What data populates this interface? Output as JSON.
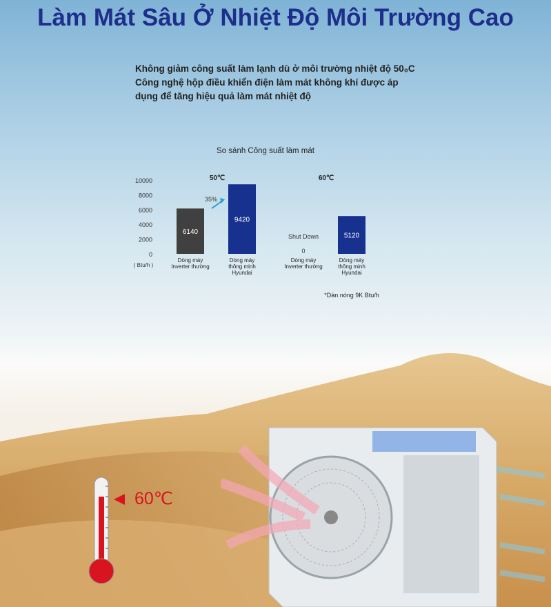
{
  "title": "Làm Mát Sâu Ở Nhiệt Độ Môi Trường Cao",
  "intro_lines": [
    "Không giảm công suất làm lạnh dù ở môi trường nhiệt độ 50₀C",
    "Công nghệ hộp điều khiển điện làm mát không khí được áp",
    "dụng để tăng hiệu quả làm mát nhiệt độ"
  ],
  "thermometer_label": "60℃",
  "colors": {
    "title": "#1d2f8a",
    "bar_inverter": "#404040",
    "bar_hyundai": "#17318f",
    "arrow": "#2f9fcf",
    "temp": "#d7141f"
  },
  "chart_data": {
    "type": "bar",
    "title": "So sánh Công suất làm mát",
    "ylabel": "( Btu/h )",
    "ylim": [
      0,
      10000
    ],
    "yticks": [
      "0",
      "2000",
      "4000",
      "6000",
      "8000",
      "10000"
    ],
    "grid": false,
    "groups": [
      {
        "label": "50℃",
        "bars": [
          {
            "category": [
              "Dòng máy",
              "Inverter thường"
            ],
            "value": 6140,
            "label": "6140",
            "color": "#404040"
          },
          {
            "category": [
              "Dòng máy",
              "thông minh",
              "Hyundai"
            ],
            "value": 9420,
            "label": "9420",
            "color": "#17318f"
          }
        ],
        "annotation": "35%"
      },
      {
        "label": "60℃",
        "bars": [
          {
            "category": [
              "Dòng máy",
              "Inverter thường"
            ],
            "value": 0,
            "label": "0",
            "note": "Shut Down",
            "color": "#404040"
          },
          {
            "category": [
              "Dòng máy",
              "thông minh",
              "Hyundai"
            ],
            "value": 5120,
            "label": "5120",
            "color": "#17318f"
          }
        ]
      }
    ],
    "footnote": "*Dàn nóng 9K Btu/h"
  }
}
